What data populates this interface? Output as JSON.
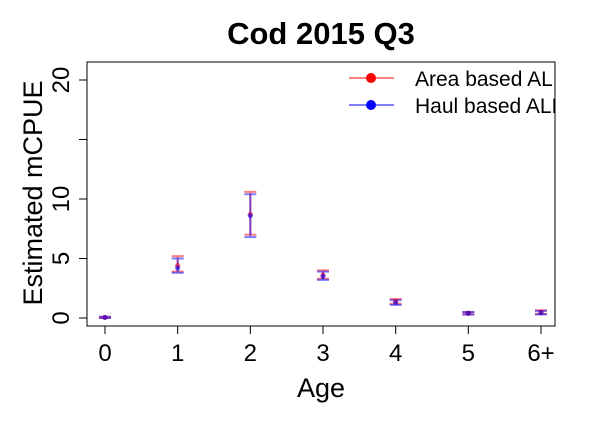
{
  "chart_data": {
    "type": "scatter",
    "title": "Cod 2015 Q3",
    "xlabel": "Age",
    "ylabel": "Estimated mCPUE",
    "categories": [
      "0",
      "1",
      "2",
      "3",
      "4",
      "5",
      "6+"
    ],
    "ylim": [
      0,
      20
    ],
    "y_ticks": [
      0,
      5,
      10,
      15,
      20
    ],
    "y_tick_labels": [
      "0",
      "5",
      "10",
      "",
      "20"
    ],
    "legend_position": "top-right",
    "grid": false,
    "series": [
      {
        "name": "Area based ALK",
        "color": "#ff0000",
        "values": [
          0.05,
          4.4,
          8.7,
          3.6,
          1.4,
          0.4,
          0.5
        ],
        "lower": [
          0.0,
          3.9,
          7.0,
          3.3,
          1.2,
          0.3,
          0.35
        ],
        "upper": [
          0.1,
          5.2,
          10.6,
          4.0,
          1.6,
          0.5,
          0.65
        ]
      },
      {
        "name": "Haul based ALK",
        "color": "#0000ff",
        "values": [
          0.05,
          4.2,
          8.6,
          3.5,
          1.3,
          0.4,
          0.45
        ],
        "lower": [
          0.0,
          3.8,
          6.8,
          3.2,
          1.1,
          0.3,
          0.3
        ],
        "upper": [
          0.1,
          5.0,
          10.4,
          3.9,
          1.5,
          0.5,
          0.6
        ]
      }
    ]
  }
}
